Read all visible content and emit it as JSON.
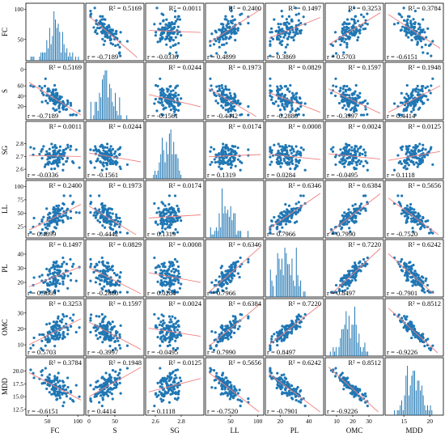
{
  "chart_data": {
    "type": "scatter",
    "variables": [
      "FC",
      "S",
      "SG",
      "LL",
      "PL",
      "OMC",
      "MDD"
    ],
    "colors": {
      "points": "#1f77b4",
      "fit_line": "#f08080",
      "bars": "#1f77b4"
    },
    "ranges": {
      "FC": [
        20,
        105
      ],
      "S": [
        0,
        100
      ],
      "SG": [
        2.55,
        2.95
      ],
      "LL": [
        10,
        105
      ],
      "PL": [
        12,
        48
      ],
      "OMC": [
        5,
        37
      ],
      "MDD": [
        12,
        22
      ]
    },
    "y_ticks": {
      "FC": [
        "0",
        "50",
        "100"
      ],
      "S": [
        "20",
        "40",
        "60"
      ],
      "SG": [
        "2.6",
        "2.7",
        "2.8"
      ],
      "LL": [
        "25",
        "50",
        "75",
        "100"
      ],
      "PL": [
        "20",
        "30",
        "40"
      ],
      "OMC": [
        "10",
        "20",
        "30"
      ],
      "MDD": [
        "12.5",
        "15.0",
        "17.5",
        "20.0"
      ]
    },
    "y_tick_values": {
      "FC": [
        0,
        50,
        100
      ],
      "S": [
        20,
        40,
        60
      ],
      "SG": [
        2.6,
        2.7,
        2.8
      ],
      "LL": [
        25,
        50,
        75,
        100
      ],
      "PL": [
        20,
        30,
        40
      ],
      "OMC": [
        10,
        20,
        30
      ],
      "MDD": [
        12.5,
        15.0,
        17.5,
        20.0
      ]
    },
    "x_ticks": {
      "FC": [
        "50",
        "100"
      ],
      "S": [
        "0",
        "50"
      ],
      "SG": [
        "2.6",
        "2.8"
      ],
      "LL": [
        "50",
        "100"
      ],
      "PL": [
        "20",
        "40"
      ],
      "OMC": [
        "10",
        "20",
        "30"
      ],
      "MDD": [
        "15",
        "20"
      ]
    },
    "x_tick_values": {
      "FC": [
        50,
        100
      ],
      "S": [
        0,
        50
      ],
      "SG": [
        2.6,
        2.8
      ],
      "LL": [
        50,
        100
      ],
      "PL": [
        20,
        40
      ],
      "OMC": [
        10,
        20,
        30
      ],
      "MDD": [
        15,
        20
      ]
    },
    "r2_labels": {
      "FC-S": "R² = 0.5169",
      "FC-SG": "R² = 0.0011",
      "FC-LL": "R² = 0.2400",
      "FC-PL": "R² = 0.1497",
      "FC-OMC": "R² = 0.3253",
      "FC-MDD": "R² = 0.3784",
      "S-SG": "R² = 0.0244",
      "S-LL": "R² = 0.1973",
      "S-PL": "R² = 0.0829",
      "S-OMC": "R² = 0.1597",
      "S-MDD": "R² = 0.1948",
      "SG-LL": "R² = 0.0174",
      "SG-PL": "R² = 0.0008",
      "SG-OMC": "R² = 0.0024",
      "SG-MDD": "R² = 0.0125",
      "LL-PL": "R² = 0.6346",
      "LL-OMC": "R² = 0.6384",
      "LL-MDD": "R² = 0.5656",
      "PL-OMC": "R² = 0.7220",
      "PL-MDD": "R² = 0.6242",
      "OMC-MDD": "R² = 0.8512"
    },
    "r_labels": {
      "FC-S": "r = -0.7189",
      "FC-SG": "r = -0.0336",
      "FC-LL": "r = 0.4899",
      "FC-PL": "r = 0.3869",
      "FC-OMC": "r = 0.5703",
      "FC-MDD": "r = -0.6151",
      "S-SG": "r = -0.1561",
      "S-LL": "r = -0.4442",
      "S-PL": "r = -0.2880",
      "S-OMC": "r = -0.3997",
      "S-MDD": "r = 0.4414",
      "SG-LL": "r = 0.1319",
      "SG-PL": "r = 0.0284",
      "SG-OMC": "r = -0.0495",
      "SG-MDD": "r = 0.1118",
      "LL-PL": "r = 0.7966",
      "LL-OMC": "r = 0.7990",
      "LL-MDD": "r = -0.7520",
      "PL-OMC": "r = 0.8497",
      "PL-MDD": "r = -0.7901",
      "OMC-MDD": "r = -0.9226"
    },
    "correlations": {
      "FC-S": -0.7189,
      "FC-SG": -0.0336,
      "FC-LL": 0.4899,
      "FC-PL": 0.3869,
      "FC-OMC": 0.5703,
      "FC-MDD": -0.6151,
      "S-SG": -0.1561,
      "S-LL": -0.4442,
      "S-PL": -0.288,
      "S-OMC": -0.3997,
      "S-MDD": 0.4414,
      "SG-LL": 0.1319,
      "SG-PL": 0.0284,
      "SG-OMC": -0.0495,
      "SG-MDD": 0.1118,
      "LL-PL": 0.7966,
      "LL-OMC": 0.799,
      "LL-MDD": -0.752,
      "PL-OMC": 0.8497,
      "PL-MDD": -0.7901,
      "OMC-MDD": -0.9226
    },
    "grid": false
  }
}
